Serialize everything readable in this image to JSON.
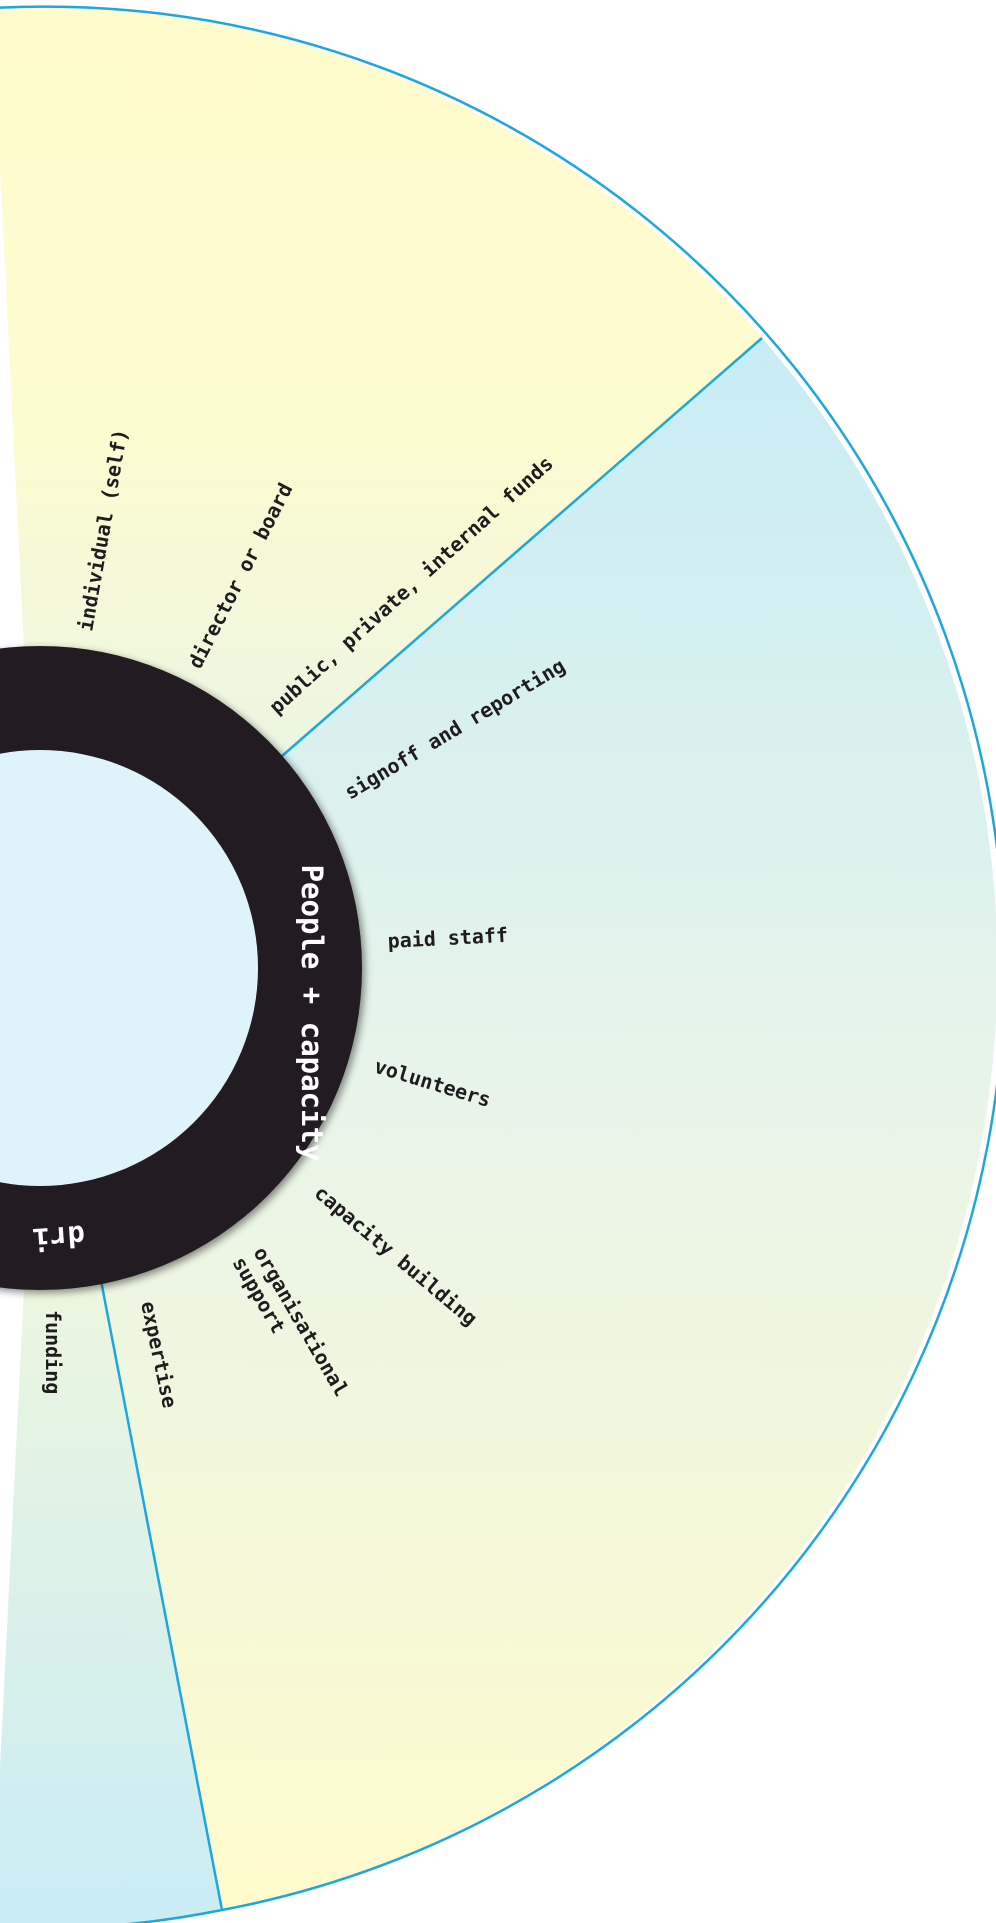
{
  "colors": {
    "outline": "#1ea7dd",
    "ring": "#231f20",
    "hub": "#dff3fb",
    "yellow": "#fffbcc",
    "blue": "#c9ecf5"
  },
  "sectors": {
    "funding": {
      "title": "funding",
      "items": [
        "individual (self)",
        "director or board",
        "public, private, internal funds"
      ]
    },
    "people": {
      "title": "People + capacity",
      "items": [
        "signoff and reporting",
        "paid staff",
        "volunteers",
        "capacity building",
        "organisational",
        "support",
        "expertise"
      ]
    },
    "lower": {
      "title_fragment": "dri",
      "items": [
        "funding"
      ]
    }
  }
}
